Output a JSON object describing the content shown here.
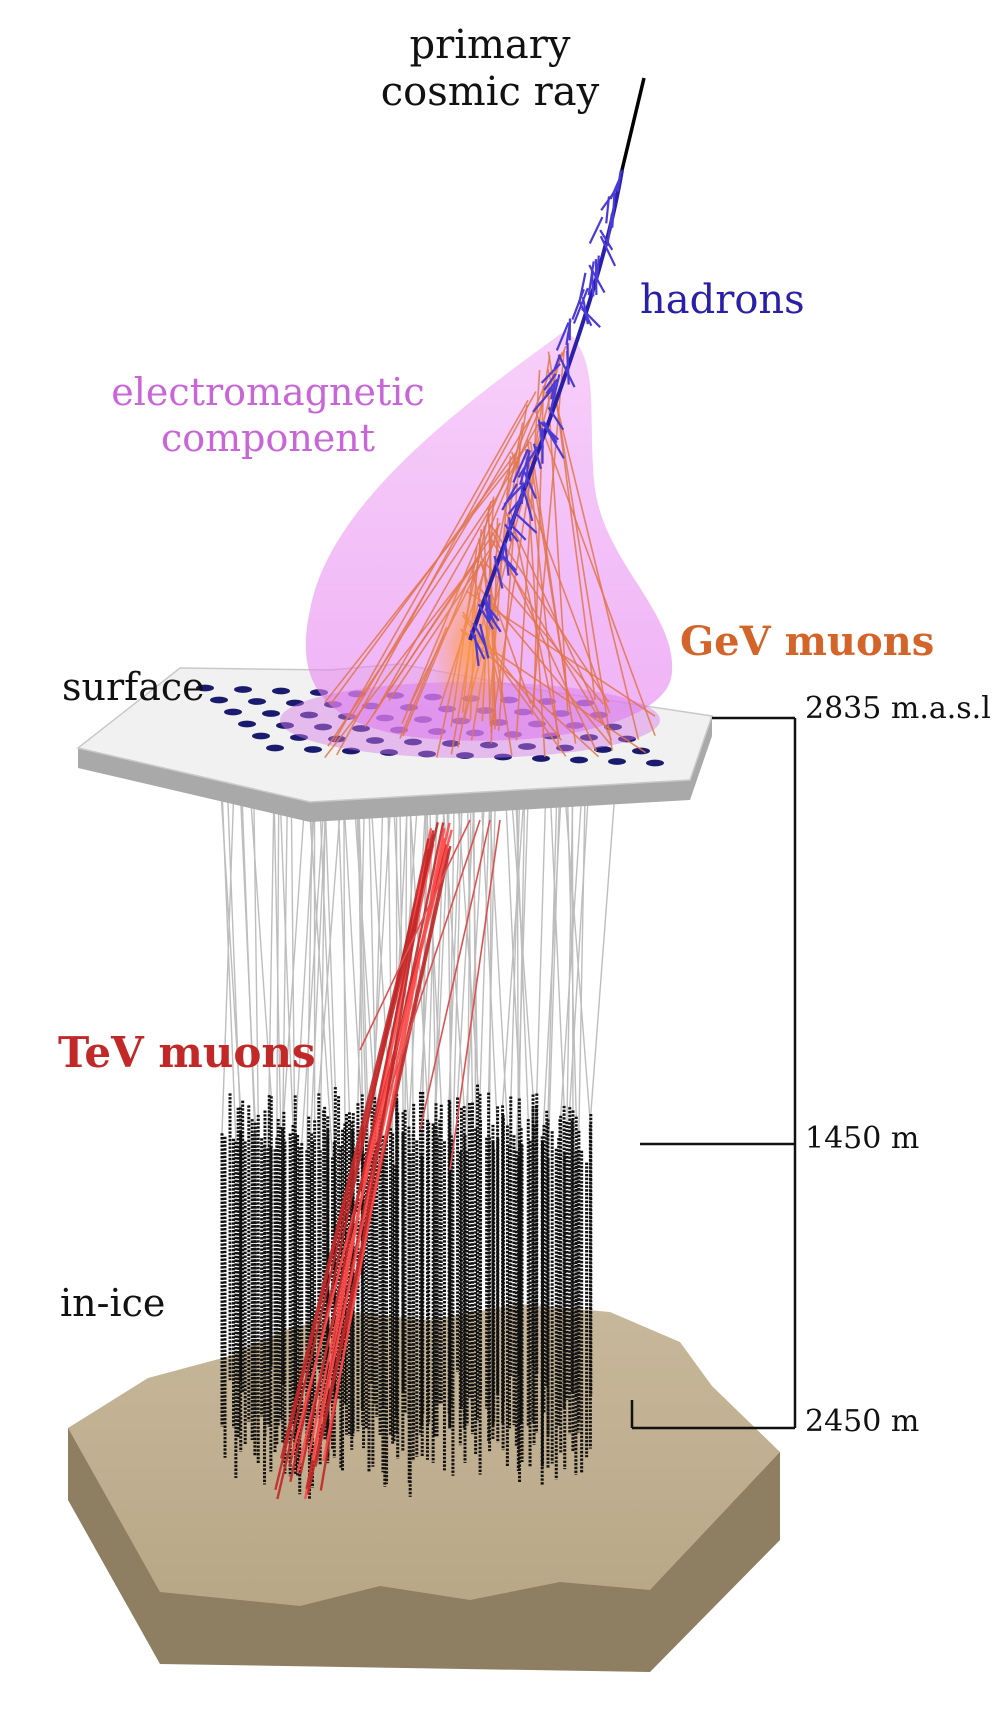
{
  "labels": {
    "primary_line1": "primary",
    "primary_line2": "cosmic ray",
    "hadrons": "hadrons",
    "em_line1": "electromagnetic",
    "em_line2": "component",
    "gev_muons": "GeV muons",
    "surface": "surface",
    "tev_muons": "TeV muons",
    "in_ice": "in-ice"
  },
  "depths": {
    "surface_altitude": "2835 m.a.s.l",
    "top": "1450 m",
    "bottom": "2450 m"
  },
  "colors": {
    "hadrons": "#2a1fa8",
    "electromagnetic": "#e58cf0",
    "gev_muons": "#d4652a",
    "tev_muons": "#c22828",
    "surface_panel": "#f1f1f1",
    "ground": "#c3b293",
    "dom_strings": "#111111",
    "cables": "#bdbdbd"
  }
}
